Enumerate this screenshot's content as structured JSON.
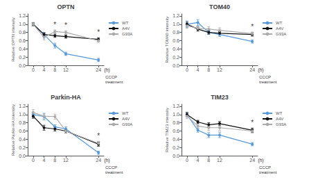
{
  "chart_data": [
    {
      "type": "line",
      "title": "OPTN",
      "ylabel": "Relative OPTN intensity",
      "xlabel": "CCCP\ntreatment",
      "x": [
        0,
        4,
        8,
        12,
        24
      ],
      "series": [
        {
          "name": "WT",
          "color": "#5599dd",
          "values": [
            1.0,
            0.75,
            0.48,
            0.28,
            0.13
          ],
          "errors": [
            0.03,
            0.05,
            0.06,
            0.04,
            0.04
          ]
        },
        {
          "name": "A4V",
          "color": "#111111",
          "values": [
            1.0,
            0.75,
            0.72,
            0.7,
            0.63
          ],
          "errors": [
            0.04,
            0.04,
            0.04,
            0.04,
            0.04
          ]
        },
        {
          "name": "G93A",
          "color": "#aaaaaa",
          "values": [
            1.0,
            0.68,
            0.82,
            0.8,
            0.6
          ],
          "errors": [
            0.04,
            0.06,
            0.04,
            0.04,
            0.04
          ]
        }
      ],
      "annotations": [
        {
          "text": "*",
          "x": 8,
          "y": 0.9
        },
        {
          "text": "*",
          "x": 12,
          "y": 0.88
        },
        {
          "text": "*",
          "x": 24,
          "y": 0.71
        },
        {
          "text": "(h)",
          "x": 24
        }
      ],
      "xlim": [
        -2,
        26
      ],
      "xticks": [
        0,
        4,
        8,
        12,
        24
      ],
      "ylim": [
        0,
        1.25
      ],
      "yticks": [
        {
          "value": 0,
          "label": "0.0"
        },
        0.2,
        0.4,
        0.6,
        0.8,
        {
          "value": 1.0,
          "label": "1.0"
        },
        1.2
      ],
      "grid": false,
      "legend": "right",
      "marker": "circle",
      "line_style": "solid"
    },
    {
      "type": "line",
      "title": "TOM40",
      "ylabel": "Relative TOM40 intensity",
      "xlabel": "CCCP\ntreatment",
      "x": [
        0,
        4,
        8,
        12,
        24
      ],
      "series": [
        {
          "name": "WT",
          "color": "#5599dd",
          "values": [
            1.0,
            1.04,
            0.8,
            0.75,
            0.58
          ],
          "errors": [
            0.08,
            0.07,
            0.05,
            0.05,
            0.04
          ]
        },
        {
          "name": "A4V",
          "color": "#111111",
          "values": [
            1.0,
            0.88,
            0.8,
            0.78,
            0.75
          ],
          "errors": [
            0.05,
            0.05,
            0.04,
            0.04,
            0.04
          ]
        },
        {
          "name": "G93A",
          "color": "#aaaaaa",
          "values": [
            0.96,
            0.9,
            0.88,
            0.85,
            0.77
          ],
          "errors": [
            0.06,
            0.05,
            0.06,
            0.06,
            0.04
          ]
        }
      ],
      "annotations": [
        {
          "text": "*",
          "x": 24,
          "y": 0.85
        },
        {
          "text": "(h)",
          "x": 24
        }
      ],
      "xlim": [
        -2,
        26
      ],
      "xticks": [
        0,
        4,
        8,
        12,
        24
      ],
      "ylim": [
        0,
        1.25
      ],
      "yticks": [
        {
          "value": 0,
          "label": "0.0"
        },
        0.2,
        0.4,
        0.6,
        0.8,
        {
          "value": 1.0,
          "label": "1.0"
        },
        1.2
      ],
      "grid": false,
      "legend": "right",
      "marker": "circle",
      "line_style": "solid"
    },
    {
      "type": "line",
      "title": "Parkin-HA",
      "ylabel": "Relative Parkin-HA intensity",
      "xlabel": "CCCP\ntreatment",
      "x": [
        0,
        4,
        8,
        12,
        24
      ],
      "series": [
        {
          "name": "WT",
          "color": "#5599dd",
          "values": [
            1.0,
            0.95,
            0.7,
            0.65,
            0.07
          ],
          "errors": [
            0.05,
            0.08,
            0.05,
            0.05,
            0.04
          ]
        },
        {
          "name": "A4V",
          "color": "#111111",
          "values": [
            0.96,
            0.68,
            0.65,
            0.6,
            0.28
          ],
          "errors": [
            0.05,
            0.06,
            0.05,
            0.05,
            0.05
          ]
        },
        {
          "name": "G93A",
          "color": "#aaaaaa",
          "values": [
            1.05,
            0.96,
            0.95,
            0.6,
            0.3
          ],
          "errors": [
            0.07,
            0.05,
            0.06,
            0.05,
            0.05
          ]
        }
      ],
      "annotations": [
        {
          "text": "*",
          "x": 24,
          "y": 0.39
        },
        {
          "text": "(h)",
          "x": 24
        }
      ],
      "xlim": [
        -2,
        26
      ],
      "xticks": [
        0,
        4,
        8,
        12,
        24
      ],
      "ylim": [
        0,
        1.25
      ],
      "yticks": [
        {
          "value": 0,
          "label": "0.0"
        },
        0.2,
        0.4,
        0.6,
        0.8,
        {
          "value": 1.0,
          "label": "1.0"
        },
        1.2
      ],
      "grid": false,
      "legend": "right",
      "marker": "circle",
      "line_style": "solid"
    },
    {
      "type": "line",
      "title": "TIM23",
      "ylabel": "Relative TIM23 intensity",
      "xlabel": "CCCP\ntreatment",
      "x": [
        0,
        4,
        8,
        12,
        24
      ],
      "series": [
        {
          "name": "WT",
          "color": "#5599dd",
          "values": [
            1.0,
            0.62,
            0.5,
            0.5,
            0.28
          ],
          "errors": [
            0.05,
            0.05,
            0.06,
            0.06,
            0.04
          ]
        },
        {
          "name": "A4V",
          "color": "#111111",
          "values": [
            1.0,
            0.82,
            0.75,
            0.78,
            0.62
          ],
          "errors": [
            0.05,
            0.04,
            0.05,
            0.05,
            0.05
          ]
        },
        {
          "name": "G93A",
          "color": "#aaaaaa",
          "values": [
            0.96,
            0.72,
            0.68,
            0.68,
            0.6
          ],
          "errors": [
            0.06,
            0.05,
            0.07,
            0.08,
            0.05
          ]
        }
      ],
      "annotations": [
        {
          "text": "*",
          "x": 24,
          "y": 0.71
        },
        {
          "text": "(h)",
          "x": 24
        }
      ],
      "xlim": [
        -2,
        26
      ],
      "xticks": [
        0,
        4,
        8,
        12,
        24
      ],
      "ylim": [
        0,
        1.25
      ],
      "yticks": [
        {
          "value": 0,
          "label": "0.0"
        },
        0.2,
        0.4,
        0.6,
        0.8,
        {
          "value": 1.0,
          "label": "1.0"
        },
        1.2
      ],
      "grid": false,
      "legend": "right",
      "marker": "circle",
      "line_style": "solid"
    }
  ]
}
